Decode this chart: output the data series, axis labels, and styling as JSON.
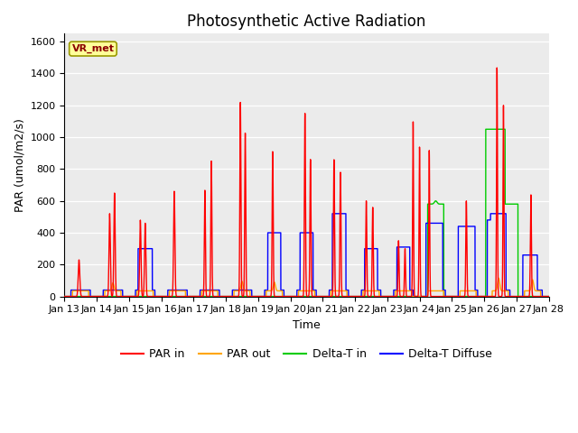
{
  "title": "Photosynthetic Active Radiation",
  "ylabel": "PAR (umol/m2/s)",
  "xlabel": "Time",
  "annotation": "VR_met",
  "ylim": [
    0,
    1650
  ],
  "yticks": [
    0,
    200,
    400,
    600,
    800,
    1000,
    1200,
    1400,
    1600
  ],
  "xtick_labels": [
    "Jan 13",
    "Jan 14",
    "Jan 15",
    "Jan 16",
    "Jan 17",
    "Jan 18",
    "Jan 19",
    "Jan 20",
    "Jan 21",
    "Jan 22",
    "Jan 23",
    "Jan 24",
    "Jan 25",
    "Jan 26",
    "Jan 27",
    "Jan 28"
  ],
  "colors": {
    "PAR_in": "#FF0000",
    "PAR_out": "#FFA500",
    "Delta_T_in": "#00CC00",
    "Delta_T_Diffuse": "#0000FF"
  },
  "legend_labels": [
    "PAR in",
    "PAR out",
    "Delta-T in",
    "Delta-T Diffuse"
  ],
  "bg_color": "#EBEBEB",
  "title_fontsize": 12,
  "label_fontsize": 9,
  "tick_fontsize": 8
}
